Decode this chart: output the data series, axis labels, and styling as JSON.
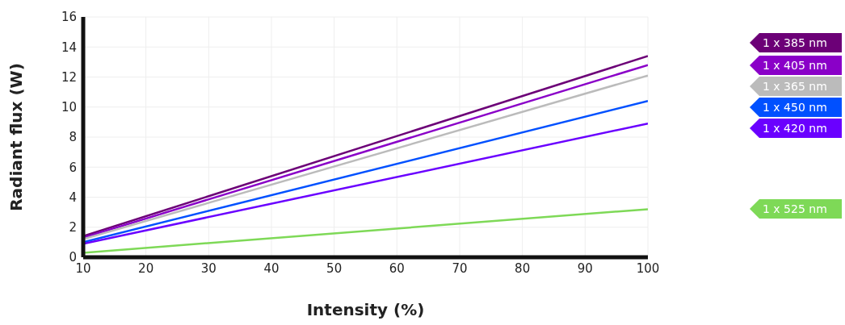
{
  "chart_data": {
    "type": "line",
    "xlabel": "Intensity (%)",
    "ylabel": "Radiant flux (W)",
    "x": [
      10,
      100
    ],
    "series": [
      {
        "name": "1 x 385 nm",
        "color": "#6c0077",
        "values": [
          1.4,
          13.4
        ]
      },
      {
        "name": "1 x 405 nm",
        "color": "#8a00c8",
        "values": [
          1.3,
          12.8
        ]
      },
      {
        "name": "1 x 365 nm",
        "color": "#bbbbbb",
        "values": [
          1.2,
          12.1
        ]
      },
      {
        "name": "1 x 450 nm",
        "color": "#0050ff",
        "values": [
          1.0,
          10.4
        ]
      },
      {
        "name": "1 x 420 nm",
        "color": "#6a00ff",
        "values": [
          0.9,
          8.9
        ]
      },
      {
        "name": "1 x 525 nm",
        "color": "#7ed957",
        "values": [
          0.3,
          3.2
        ]
      }
    ],
    "xlim": [
      10,
      100
    ],
    "xticks": [
      10,
      20,
      30,
      40,
      50,
      60,
      70,
      80,
      90,
      100
    ],
    "ylim": [
      0,
      16
    ],
    "yticks": [
      0,
      2,
      4,
      6,
      8,
      10,
      12,
      14,
      16
    ],
    "grid": true,
    "legend": "right",
    "marker": "none",
    "line_style": "solid"
  }
}
